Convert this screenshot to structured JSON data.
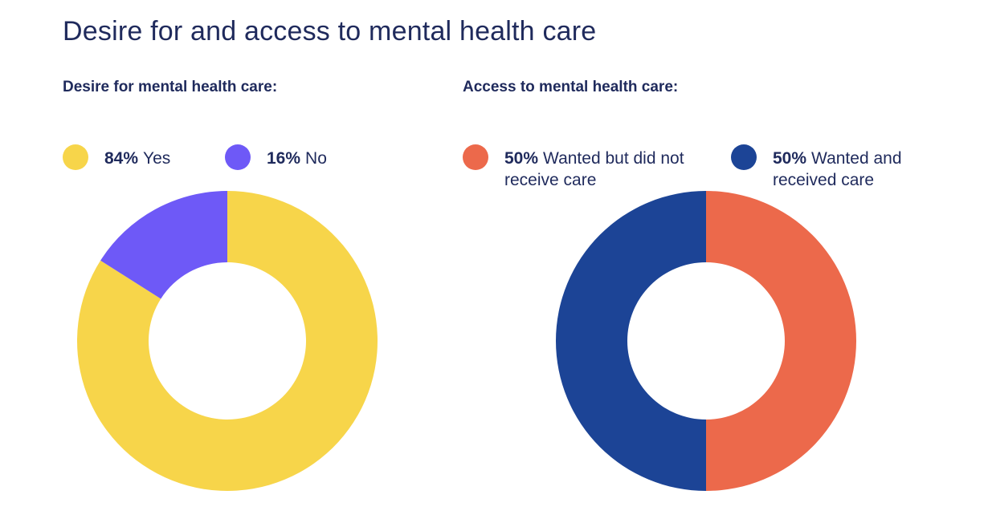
{
  "page": {
    "title": "Desire for and access to mental health care"
  },
  "chart_data": [
    {
      "type": "pie",
      "variant": "donut",
      "title": "Desire for mental health care:",
      "categories": [
        "Yes",
        "No"
      ],
      "values": [
        84,
        16
      ],
      "value_labels": [
        "84%",
        "16%"
      ],
      "colors": [
        "#F7D54A",
        "#6E59F7"
      ],
      "legend_position": "top"
    },
    {
      "type": "pie",
      "variant": "donut",
      "title": "Access to mental health care:",
      "categories": [
        "Wanted but did not receive care",
        "Wanted and received care"
      ],
      "values": [
        50,
        50
      ],
      "value_labels": [
        "50%",
        "50%"
      ],
      "colors": [
        "#EC694B",
        "#1C4496"
      ],
      "legend_position": "top"
    }
  ]
}
